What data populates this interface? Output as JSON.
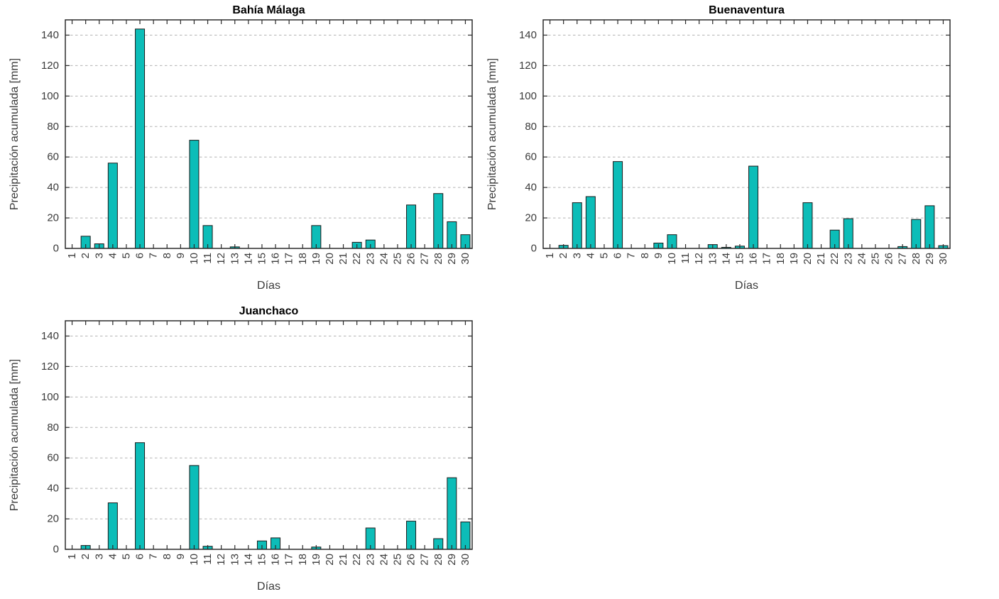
{
  "style": {
    "background": "#ffffff",
    "bar_fill": "#0cbdb8",
    "bar_edge": "#1a1a1a",
    "axis_color": "#2b2b2b",
    "grid_color": "#b3b3b3",
    "tick_label_color": "#3a3a3a",
    "title_color": "#000000"
  },
  "chart_data": [
    {
      "type": "bar",
      "title": "Bahía Málaga",
      "xlabel": "Días",
      "ylabel": "Precipitación acumulada [mm]",
      "categories": [
        "1",
        "2",
        "3",
        "4",
        "5",
        "6",
        "7",
        "8",
        "9",
        "10",
        "11",
        "12",
        "13",
        "14",
        "15",
        "16",
        "17",
        "18",
        "19",
        "20",
        "21",
        "22",
        "23",
        "24",
        "25",
        "26",
        "27",
        "28",
        "29",
        "30"
      ],
      "values": [
        0,
        8,
        3,
        56,
        0,
        144,
        0,
        0,
        0,
        71,
        15,
        0,
        1,
        0,
        0,
        0,
        0,
        0,
        15,
        0,
        0,
        4,
        5.5,
        0,
        0,
        28.5,
        0,
        36,
        17.5,
        9
      ],
      "ylim": [
        0,
        150
      ],
      "yticks": [
        0,
        20,
        40,
        60,
        80,
        100,
        120,
        140
      ],
      "grid": "horizontal-dashed",
      "legend": "none"
    },
    {
      "type": "bar",
      "title": "Buenaventura",
      "xlabel": "Días",
      "ylabel": "Precipitación acumulada [mm]",
      "categories": [
        "1",
        "2",
        "3",
        "4",
        "5",
        "6",
        "7",
        "8",
        "9",
        "10",
        "11",
        "12",
        "13",
        "14",
        "15",
        "16",
        "17",
        "18",
        "19",
        "20",
        "21",
        "22",
        "23",
        "24",
        "25",
        "26",
        "27",
        "28",
        "29",
        "30"
      ],
      "values": [
        0,
        2,
        30,
        34,
        0,
        57,
        0,
        0,
        3.5,
        9,
        0,
        0,
        2.5,
        0.7,
        1.5,
        54,
        0,
        0,
        0,
        30,
        0,
        12,
        19.5,
        0,
        0,
        0,
        1.2,
        19,
        28,
        1.8
      ],
      "ylim": [
        0,
        150
      ],
      "yticks": [
        0,
        20,
        40,
        60,
        80,
        100,
        120,
        140
      ],
      "grid": "horizontal-dashed",
      "legend": "none"
    },
    {
      "type": "bar",
      "title": "Juanchaco",
      "xlabel": "Días",
      "ylabel": "Precipitación acumulada [mm]",
      "categories": [
        "1",
        "2",
        "3",
        "4",
        "5",
        "6",
        "7",
        "8",
        "9",
        "10",
        "11",
        "12",
        "13",
        "14",
        "15",
        "16",
        "17",
        "18",
        "19",
        "20",
        "21",
        "22",
        "23",
        "24",
        "25",
        "26",
        "27",
        "28",
        "29",
        "30"
      ],
      "values": [
        0,
        2.5,
        0,
        30.5,
        0,
        70,
        0,
        0,
        0,
        55,
        2,
        0,
        0,
        0,
        5.5,
        7.5,
        0,
        0,
        1.5,
        0,
        0,
        0,
        14,
        0,
        0,
        18.5,
        0,
        7,
        47,
        18
      ],
      "ylim": [
        0,
        150
      ],
      "yticks": [
        0,
        20,
        40,
        60,
        80,
        100,
        120,
        140
      ],
      "grid": "horizontal-dashed",
      "legend": "none"
    }
  ]
}
